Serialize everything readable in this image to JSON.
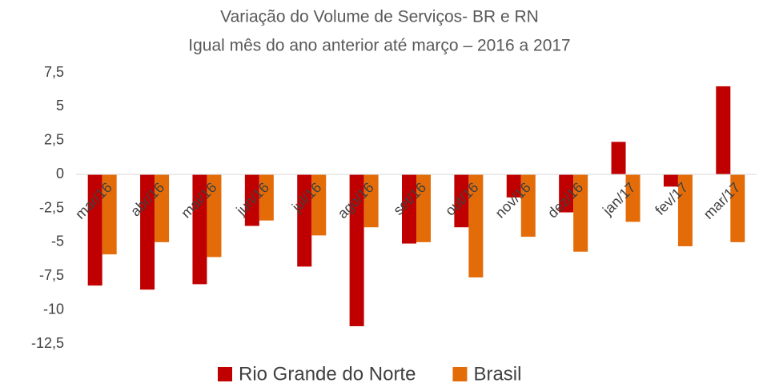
{
  "chart_data": {
    "type": "bar",
    "title": "Variação do Volume de Serviços- BR e RN",
    "subtitle": "Igual mês do ano anterior até março – 2016 a 2017",
    "categories": [
      "mar/16",
      "abr/16",
      "mai/16",
      "jun/16",
      "jul/16",
      "ago/16",
      "set/16",
      "out/16",
      "nov/16",
      "dez/16",
      "jan/17",
      "fev/17",
      "mar/17"
    ],
    "series": [
      {
        "name": "Rio Grande do Norte",
        "color": "#c00000",
        "values": [
          -8.2,
          -8.5,
          -8.1,
          -3.8,
          -6.8,
          -11.2,
          -5.1,
          -3.9,
          -1.7,
          -2.8,
          2.4,
          -0.9,
          6.5
        ]
      },
      {
        "name": "Brasil",
        "color": "#e36c09",
        "values": [
          -5.9,
          -5.0,
          -6.1,
          -3.4,
          -4.5,
          -3.9,
          -5.0,
          -7.6,
          -4.6,
          -5.7,
          -3.5,
          -5.3,
          -5.0
        ]
      }
    ],
    "ylim": [
      -12.5,
      7.5
    ],
    "yticks": [
      {
        "value": 7.5,
        "label": "7,5"
      },
      5,
      {
        "value": 2.5,
        "label": "2,5"
      },
      0,
      {
        "value": -2.5,
        "label": "-2,5"
      },
      -5,
      {
        "value": -7.5,
        "label": "-7,5"
      },
      -10,
      {
        "value": -12.5,
        "label": "-12,5"
      }
    ],
    "grid": false,
    "legend": "bottom"
  }
}
